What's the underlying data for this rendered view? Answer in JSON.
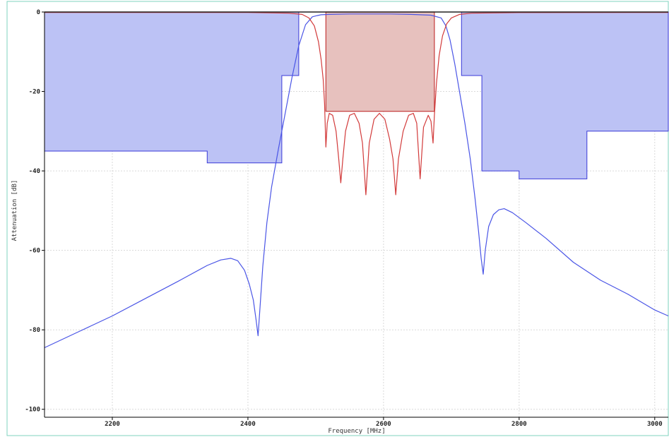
{
  "chart_data": {
    "type": "line",
    "xlabel": "Frequency [MHz]",
    "ylabel": "Attenuation [dB]",
    "xlim": [
      2100,
      3020
    ],
    "ylim": [
      -102,
      0
    ],
    "x_ticks": [
      2200,
      2400,
      2600,
      2800,
      3000
    ],
    "y_ticks": [
      0,
      -20,
      -40,
      -60,
      -80,
      -100
    ],
    "x_tick_labels": [
      "2200",
      "2400",
      "2600",
      "2800",
      "3000"
    ],
    "y_tick_labels": [
      "0",
      "-20",
      "-40",
      "-60",
      "-80",
      "-100"
    ],
    "grid": true,
    "colors": {
      "mask_fill": "#bcc2f5",
      "mask_edge": "#3a3ad8",
      "passband_fill": "#e7c1be",
      "passband_edge": "#c43a3a",
      "s21": "#4a55e6",
      "s11": "#d23a3a",
      "grid": "#d9d9d9",
      "frame": "#7fd3bf"
    },
    "rejection_mask": [
      {
        "region": "lower",
        "x": [
          2100,
          2340,
          2340,
          2390,
          2390,
          2450,
          2450,
          2475,
          2475,
          2100
        ],
        "y": [
          -35,
          -35,
          -38,
          -38,
          -38,
          -38,
          -16,
          -16,
          0,
          0
        ]
      },
      {
        "region": "upper",
        "x": [
          2715,
          2715,
          2745,
          2745,
          2800,
          2800,
          2900,
          2900,
          3020,
          3020
        ],
        "y": [
          0,
          -16,
          -16,
          -40,
          -40,
          -42,
          -42,
          -30,
          -30,
          0
        ]
      }
    ],
    "passband_mask": {
      "x": [
        2515,
        2675
      ],
      "y_top": 0,
      "y_bottom": -25
    },
    "series": [
      {
        "key": "s21",
        "x": [
          2100,
          2150,
          2200,
          2250,
          2300,
          2340,
          2360,
          2375,
          2385,
          2395,
          2402,
          2408,
          2412,
          2415,
          2418,
          2422,
          2428,
          2435,
          2445,
          2455,
          2465,
          2475,
          2485,
          2495,
          2502,
          2508,
          2520,
          2550,
          2580,
          2610,
          2640,
          2670,
          2685,
          2692,
          2698,
          2705,
          2712,
          2720,
          2728,
          2735,
          2740,
          2744,
          2747,
          2750,
          2755,
          2762,
          2770,
          2778,
          2790,
          2810,
          2840,
          2880,
          2920,
          2960,
          3000,
          3020
        ],
        "y": [
          -84.5,
          -80.5,
          -76.5,
          -72,
          -67.5,
          -63.8,
          -62.4,
          -62,
          -62.6,
          -65,
          -68.5,
          -72.5,
          -77.5,
          -81.5,
          -74,
          -64,
          -53,
          -44,
          -34.5,
          -25.5,
          -16.5,
          -8.5,
          -3.2,
          -1.2,
          -0.9,
          -0.7,
          -0.6,
          -0.5,
          -0.5,
          -0.5,
          -0.6,
          -0.8,
          -1.5,
          -3.5,
          -7,
          -13,
          -20,
          -28,
          -37,
          -47,
          -55,
          -62,
          -66,
          -60,
          -54,
          -51,
          -49.8,
          -49.5,
          -50.5,
          -53,
          -57,
          -63,
          -67.5,
          -71,
          -75,
          -76.5
        ]
      },
      {
        "key": "s11",
        "x": [
          2100,
          2400,
          2460,
          2480,
          2490,
          2498,
          2504,
          2508,
          2511,
          2513,
          2515,
          2517,
          2520,
          2525,
          2530,
          2534,
          2537,
          2540,
          2544,
          2550,
          2557,
          2564,
          2569,
          2574,
          2579,
          2586,
          2594,
          2602,
          2609,
          2614,
          2618,
          2622,
          2629,
          2637,
          2644,
          2649,
          2654,
          2659,
          2666,
          2670,
          2673,
          2675,
          2678,
          2682,
          2687,
          2693,
          2700,
          2712,
          2730,
          2800,
          3020
        ],
        "y": [
          -0.1,
          -0.1,
          -0.3,
          -0.6,
          -1.5,
          -3.5,
          -7.5,
          -12,
          -17,
          -23,
          -34,
          -28,
          -25.5,
          -26,
          -30,
          -37,
          -43,
          -37,
          -30,
          -26,
          -25.5,
          -28,
          -33,
          -46,
          -33,
          -27,
          -25.5,
          -27,
          -32,
          -37,
          -46,
          -37,
          -30,
          -26,
          -25.5,
          -28,
          -42,
          -29,
          -26,
          -27.5,
          -33,
          -26,
          -18,
          -11,
          -6,
          -3,
          -1.5,
          -0.6,
          -0.3,
          -0.15,
          -0.1
        ]
      }
    ]
  }
}
